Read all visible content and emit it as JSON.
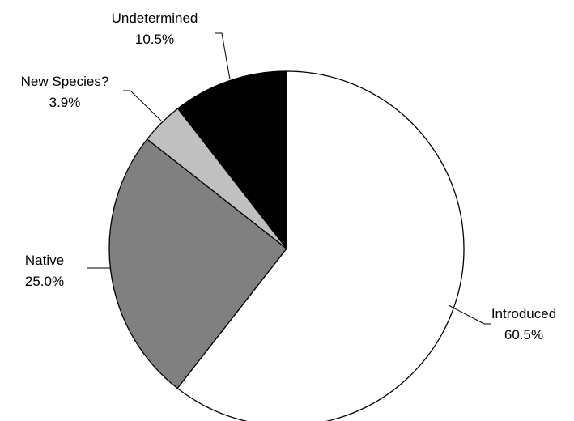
{
  "chart_data": {
    "type": "pie",
    "title": "",
    "slices": [
      {
        "label": "Introduced",
        "percent_label": "60.5%",
        "value": 60.5,
        "color": "#ffffff"
      },
      {
        "label": "Native",
        "percent_label": "25.0%",
        "value": 25.0,
        "color": "#808080"
      },
      {
        "label": "New Species?",
        "percent_label": "3.9%",
        "value": 3.9,
        "color": "#c0c0c0"
      },
      {
        "label": "Undetermined",
        "percent_label": "10.5%",
        "value": 10.5,
        "color": "#000000"
      }
    ],
    "start_angle_deg": 0,
    "direction": "clockwise",
    "stroke_color": "#000000"
  }
}
